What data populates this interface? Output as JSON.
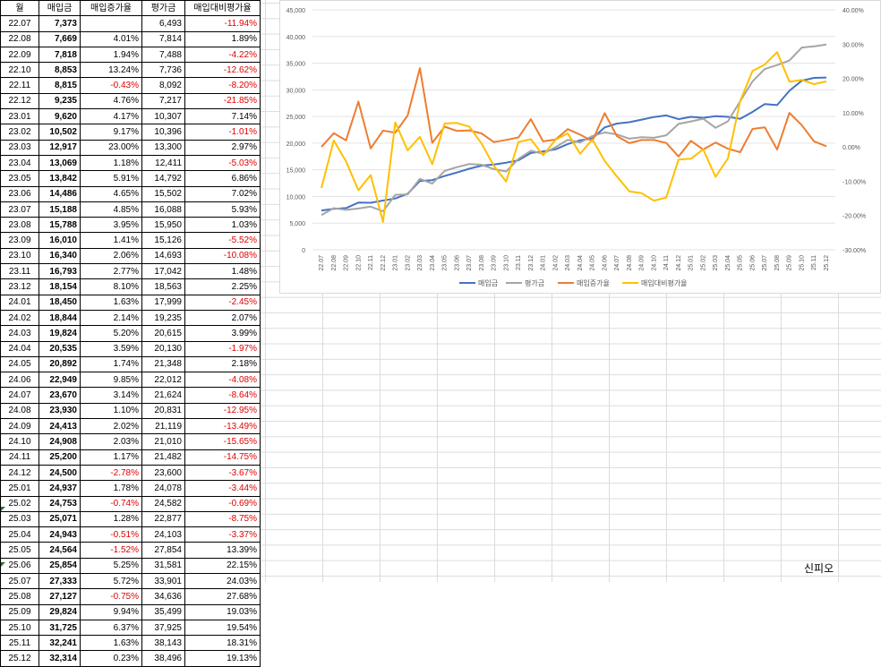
{
  "table": {
    "headers": [
      "월",
      "매입금",
      "매입증가율",
      "평가금",
      "매입대비평가율"
    ],
    "rows": [
      {
        "month": "22.07",
        "buy": "7,373",
        "rate": "",
        "value": "6,493",
        "ret": "-11.94%"
      },
      {
        "month": "22.08",
        "buy": "7,669",
        "rate": "4.01%",
        "value": "7,814",
        "ret": "1.89%"
      },
      {
        "month": "22.09",
        "buy": "7,818",
        "rate": "1.94%",
        "value": "7,488",
        "ret": "-4.22%"
      },
      {
        "month": "22.10",
        "buy": "8,853",
        "rate": "13.24%",
        "value": "7,736",
        "ret": "-12.62%"
      },
      {
        "month": "22.11",
        "buy": "8,815",
        "rate": "-0.43%",
        "value": "8,092",
        "ret": "-8.20%"
      },
      {
        "month": "22.12",
        "buy": "9,235",
        "rate": "4.76%",
        "value": "7,217",
        "ret": "-21.85%"
      },
      {
        "month": "23.01",
        "buy": "9,620",
        "rate": "4.17%",
        "value": "10,307",
        "ret": "7.14%"
      },
      {
        "month": "23.02",
        "buy": "10,502",
        "rate": "9.17%",
        "value": "10,396",
        "ret": "-1.01%"
      },
      {
        "month": "23.03",
        "buy": "12,917",
        "rate": "23.00%",
        "value": "13,300",
        "ret": "2.97%"
      },
      {
        "month": "23.04",
        "buy": "13,069",
        "rate": "1.18%",
        "value": "12,411",
        "ret": "-5.03%"
      },
      {
        "month": "23.05",
        "buy": "13,842",
        "rate": "5.91%",
        "value": "14,792",
        "ret": "6.86%"
      },
      {
        "month": "23.06",
        "buy": "14,486",
        "rate": "4.65%",
        "value": "15,502",
        "ret": "7.02%"
      },
      {
        "month": "23.07",
        "buy": "15,188",
        "rate": "4.85%",
        "value": "16,088",
        "ret": "5.93%"
      },
      {
        "month": "23.08",
        "buy": "15,788",
        "rate": "3.95%",
        "value": "15,950",
        "ret": "1.03%"
      },
      {
        "month": "23.09",
        "buy": "16,010",
        "rate": "1.41%",
        "value": "15,126",
        "ret": "-5.52%"
      },
      {
        "month": "23.10",
        "buy": "16,340",
        "rate": "2.06%",
        "value": "14,693",
        "ret": "-10.08%"
      },
      {
        "month": "23.11",
        "buy": "16,793",
        "rate": "2.77%",
        "value": "17,042",
        "ret": "1.48%"
      },
      {
        "month": "23.12",
        "buy": "18,154",
        "rate": "8.10%",
        "value": "18,563",
        "ret": "2.25%"
      },
      {
        "month": "24.01",
        "buy": "18,450",
        "rate": "1.63%",
        "value": "17,999",
        "ret": "-2.45%"
      },
      {
        "month": "24.02",
        "buy": "18,844",
        "rate": "2.14%",
        "value": "19,235",
        "ret": "2.07%"
      },
      {
        "month": "24.03",
        "buy": "19,824",
        "rate": "5.20%",
        "value": "20,615",
        "ret": "3.99%"
      },
      {
        "month": "24.04",
        "buy": "20,535",
        "rate": "3.59%",
        "value": "20,130",
        "ret": "-1.97%"
      },
      {
        "month": "24.05",
        "buy": "20,892",
        "rate": "1.74%",
        "value": "21,348",
        "ret": "2.18%"
      },
      {
        "month": "24.06",
        "buy": "22,949",
        "rate": "9.85%",
        "value": "22,012",
        "ret": "-4.08%"
      },
      {
        "month": "24.07",
        "buy": "23,670",
        "rate": "3.14%",
        "value": "21,624",
        "ret": "-8.64%"
      },
      {
        "month": "24.08",
        "buy": "23,930",
        "rate": "1.10%",
        "value": "20,831",
        "ret": "-12.95%"
      },
      {
        "month": "24.09",
        "buy": "24,413",
        "rate": "2.02%",
        "value": "21,119",
        "ret": "-13.49%"
      },
      {
        "month": "24.10",
        "buy": "24,908",
        "rate": "2.03%",
        "value": "21,010",
        "ret": "-15.65%"
      },
      {
        "month": "24.11",
        "buy": "25,200",
        "rate": "1.17%",
        "value": "21,482",
        "ret": "-14.75%"
      },
      {
        "month": "24.12",
        "buy": "24,500",
        "rate": "-2.78%",
        "value": "23,600",
        "ret": "-3.67%"
      },
      {
        "month": "25.01",
        "buy": "24,937",
        "rate": "1.78%",
        "value": "24,078",
        "ret": "-3.44%"
      },
      {
        "month": "25.02",
        "buy": "24,753",
        "rate": "-0.74%",
        "value": "24,582",
        "ret": "-0.69%"
      },
      {
        "month": "25.03",
        "buy": "25,071",
        "rate": "1.28%",
        "value": "22,877",
        "ret": "-8.75%"
      },
      {
        "month": "25.04",
        "buy": "24,943",
        "rate": "-0.51%",
        "value": "24,103",
        "ret": "-3.37%"
      },
      {
        "month": "25.05",
        "buy": "24,564",
        "rate": "-1.52%",
        "value": "27,854",
        "ret": "13.39%"
      },
      {
        "month": "25.06",
        "buy": "25,854",
        "rate": "5.25%",
        "value": "31,581",
        "ret": "22.15%"
      },
      {
        "month": "25.07",
        "buy": "27,333",
        "rate": "5.72%",
        "value": "33,901",
        "ret": "24.03%"
      },
      {
        "month": "25.08",
        "buy": "27,127",
        "rate": "-0.75%",
        "value": "34,636",
        "ret": "27.68%"
      },
      {
        "month": "25.09",
        "buy": "29,824",
        "rate": "9.94%",
        "value": "35,499",
        "ret": "19.03%"
      },
      {
        "month": "25.10",
        "buy": "31,725",
        "rate": "6.37%",
        "value": "37,925",
        "ret": "19.54%"
      },
      {
        "month": "25.11",
        "buy": "32,241",
        "rate": "1.63%",
        "value": "38,143",
        "ret": "18.31%"
      },
      {
        "month": "25.12",
        "buy": "32,314",
        "rate": "0.23%",
        "value": "38,496",
        "ret": "19.13%"
      }
    ]
  },
  "chart_data": {
    "type": "line",
    "categories": [
      "22.07",
      "22.08",
      "22.09",
      "22.10",
      "22.11",
      "22.12",
      "23.01",
      "23.02",
      "23.03",
      "23.04",
      "23.05",
      "23.06",
      "23.07",
      "23.08",
      "23.09",
      "23.10",
      "23.11",
      "23.12",
      "24.01",
      "24.02",
      "24.03",
      "24.04",
      "24.05",
      "24.06",
      "24.07",
      "24.08",
      "24.09",
      "24.10",
      "24.11",
      "24.12",
      "25.01",
      "25.02",
      "25.03",
      "25.04",
      "25.05",
      "25.06",
      "25.07",
      "25.08",
      "25.09",
      "25.10",
      "25.11",
      "25.12"
    ],
    "y_left": {
      "ticks": [
        "0",
        "5,000",
        "10,000",
        "15,000",
        "20,000",
        "25,000",
        "30,000",
        "35,000",
        "40,000",
        "45,000"
      ],
      "lim": [
        0,
        45000
      ]
    },
    "y_right": {
      "ticks": [
        "40.00%",
        "30.00%",
        "20.00%",
        "10.00%",
        "0.00%",
        "-10.00%",
        "-20.00%",
        "-30.00%"
      ],
      "lim": [
        -30,
        40
      ]
    },
    "series": [
      {
        "name": "매입금",
        "axis": "left",
        "color": "#4472c4",
        "values": [
          7373,
          7669,
          7818,
          8853,
          8815,
          9235,
          9620,
          10502,
          12917,
          13069,
          13842,
          14486,
          15188,
          15788,
          16010,
          16340,
          16793,
          18154,
          18450,
          18844,
          19824,
          20535,
          20892,
          22949,
          23670,
          23930,
          24413,
          24908,
          25200,
          24500,
          24937,
          24753,
          25071,
          24943,
          24564,
          25854,
          27333,
          27127,
          29824,
          31725,
          32241,
          32314
        ]
      },
      {
        "name": "평가금",
        "axis": "left",
        "color": "#a5a5a5",
        "values": [
          6493,
          7814,
          7488,
          7736,
          8092,
          7217,
          10307,
          10396,
          13300,
          12411,
          14792,
          15502,
          16088,
          15950,
          15126,
          14693,
          17042,
          18563,
          17999,
          19235,
          20615,
          20130,
          21348,
          22012,
          21624,
          20831,
          21119,
          21010,
          21482,
          23600,
          24078,
          24582,
          22877,
          24103,
          27854,
          31581,
          33901,
          34636,
          35499,
          37925,
          38143,
          38496
        ]
      },
      {
        "name": "매입증가율",
        "axis": "right",
        "color": "#ed7d31",
        "values": [
          0,
          4.01,
          1.94,
          13.24,
          -0.43,
          4.76,
          4.17,
          9.17,
          23.0,
          1.18,
          5.91,
          4.65,
          4.85,
          3.95,
          1.41,
          2.06,
          2.77,
          8.1,
          1.63,
          2.14,
          5.2,
          3.59,
          1.74,
          9.85,
          3.14,
          1.1,
          2.02,
          2.03,
          1.17,
          -2.78,
          1.78,
          -0.74,
          1.28,
          -0.51,
          -1.52,
          5.25,
          5.72,
          -0.75,
          9.94,
          6.37,
          1.63,
          0.23
        ]
      },
      {
        "name": "매입대비평가율",
        "axis": "right",
        "color": "#ffc000",
        "values": [
          -11.94,
          1.89,
          -4.22,
          -12.62,
          -8.2,
          -21.85,
          7.14,
          -1.01,
          2.97,
          -5.03,
          6.86,
          7.02,
          5.93,
          1.03,
          -5.52,
          -10.08,
          1.48,
          2.25,
          -2.45,
          2.07,
          3.99,
          -1.97,
          2.18,
          -4.08,
          -8.64,
          -12.95,
          -13.49,
          -15.65,
          -14.75,
          -3.67,
          -3.44,
          -0.69,
          -8.75,
          -3.37,
          13.39,
          22.15,
          24.03,
          27.68,
          19.03,
          19.54,
          18.31,
          19.13
        ]
      }
    ],
    "legend_position": "bottom",
    "grid": true
  },
  "signature": "신피오"
}
